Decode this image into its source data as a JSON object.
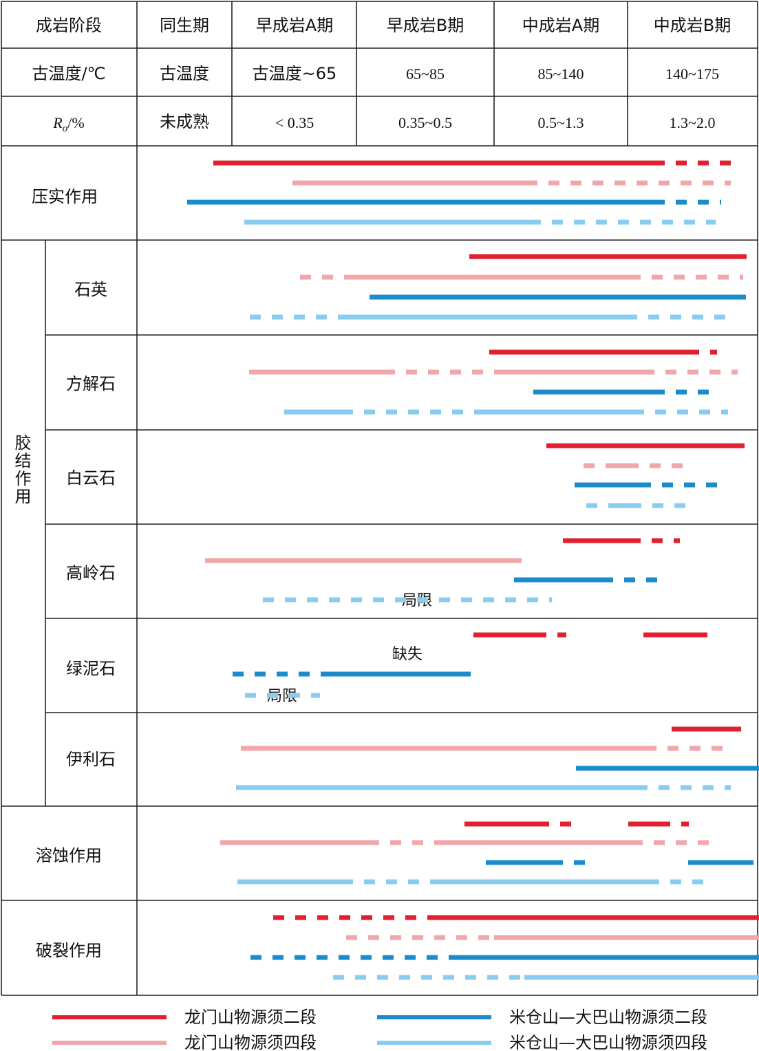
{
  "colors": {
    "longmen_2": "#e0202e",
    "longmen_4": "#f0a6aa",
    "micang_2": "#1a8ccc",
    "micang_4": "#88cdf0",
    "grid": "#222222"
  },
  "header": {
    "rows": [
      [
        "成岩阶段",
        "同生期",
        "早成岩A期",
        "早成岩B期",
        "中成岩A期",
        "中成岩B期"
      ],
      [
        "古温度/℃",
        "古温度",
        "古温度~65",
        "65~85",
        "85~140",
        "140~175"
      ],
      [
        "Ro/%",
        "未成熟",
        "< 0.35",
        "0.35~0.5",
        "0.5~1.3",
        "1.3~2.0"
      ]
    ]
  },
  "processes": {
    "compaction": "压实作用",
    "cementation": "胶结作用",
    "quartz": "石英",
    "calcite": "方解石",
    "dolomite": "白云石",
    "kaolinite": "高岭石",
    "chlorite": "绿泥石",
    "illite": "伊利石",
    "dissolution": "溶蚀作用",
    "fracturing": "破裂作用"
  },
  "annotations": {
    "kaolinite_note": "局限",
    "chlorite_missing": "缺失",
    "chlorite_note": "局限"
  },
  "legend": [
    {
      "label": "龙门山物源须二段",
      "color_key": "longmen_2"
    },
    {
      "label": "米仓山—大巴山物源须二段",
      "color_key": "micang_2"
    },
    {
      "label": "龙门山物源须四段",
      "color_key": "longmen_4"
    },
    {
      "label": "米仓山—大巴山物源须四段",
      "color_key": "micang_4"
    }
  ],
  "bars": {
    "compaction": [
      {
        "color_key": "longmen_2",
        "solid": [
          310,
          950
        ],
        "dashed": [
          950,
          1068
        ]
      },
      {
        "color_key": "longmen_4",
        "solid": [
          425,
          765
        ],
        "dashed": [
          765,
          1062
        ]
      },
      {
        "color_key": "micang_2",
        "solid": [
          272,
          950
        ],
        "dashed": [
          950,
          1048
        ]
      },
      {
        "color_key": "micang_4",
        "solid": [
          355,
          770
        ],
        "dashed": [
          770,
          1040
        ]
      }
    ],
    "quartz": [
      {
        "color_key": "longmen_2",
        "solid": [
          682,
          1085
        ],
        "dashed": null
      },
      {
        "color_key": "longmen_4",
        "solid": [
          515,
          915
        ],
        "dashed": [
          915,
          1080
        ],
        "dashed_before": [
          436,
          515
        ]
      },
      {
        "color_key": "micang_2",
        "solid": [
          537,
          1084
        ],
        "dashed": null
      },
      {
        "color_key": "micang_4",
        "solid": [
          500,
          910
        ],
        "dashed": [
          910,
          1055
        ],
        "dashed_before": [
          363,
          500
        ]
      }
    ],
    "calcite": [
      {
        "color_key": "longmen_2",
        "solid": [
          711,
          1000
        ],
        "dashed": [
          1000,
          1042
        ]
      },
      {
        "color_key": "longmen_4",
        "solid": [
          362,
          558
        ],
        "dashed": [
          558,
          720
        ],
        "solid2": [
          720,
          935
        ],
        "dashed2": [
          935,
          1072
        ]
      },
      {
        "color_key": "micang_2",
        "solid": [
          775,
          950
        ],
        "dashed": [
          950,
          1032
        ]
      },
      {
        "color_key": "micang_4",
        "solid": [
          413,
          497
        ],
        "dashed": [
          497,
          695
        ],
        "solid2": [
          695,
          920
        ],
        "dashed2": [
          920,
          1058
        ]
      }
    ],
    "dolomite": [
      {
        "color_key": "longmen_2",
        "solid": [
          794,
          1082
        ],
        "dashed": null
      },
      {
        "color_key": "longmen_4",
        "solid": [
          880,
          925
        ],
        "dashed": [
          848,
          995
        ]
      },
      {
        "color_key": "micang_2",
        "solid": [
          835,
          930
        ],
        "dashed": [
          930,
          1045
        ]
      },
      {
        "color_key": "micang_4",
        "solid": [
          885,
          925
        ],
        "dashed": [
          852,
          1008
        ]
      }
    ],
    "kaolinite": [
      {
        "color_key": "longmen_2",
        "solid": [
          818,
          915
        ],
        "dashed": [
          915,
          988
        ]
      },
      {
        "color_key": "longmen_4",
        "solid": [
          298,
          758
        ],
        "dashed": null
      },
      {
        "color_key": "micang_2",
        "solid": [
          747,
          875
        ],
        "dashed": [
          875,
          962
        ]
      },
      {
        "color_key": "micang_4",
        "solid": null,
        "dashed": [
          382,
          802
        ]
      }
    ],
    "chlorite": [
      {
        "color_key": "longmen_2",
        "solid": [
          688,
          778
        ],
        "dashed": [
          778,
          823
        ]
      },
      {
        "color_key": "longmen_2",
        "solid": [
          935,
          1015
        ],
        "dashed": [
          1015,
          1028
        ]
      },
      {
        "color_key": "micang_2",
        "solid": [
          480,
          684
        ],
        "dashed": [
          338,
          480
        ]
      },
      {
        "color_key": "micang_4",
        "solid": null,
        "dashed": [
          356,
          465
        ]
      }
    ],
    "illite": [
      {
        "color_key": "longmen_2",
        "solid": [
          976,
          1077
        ],
        "dashed": null
      },
      {
        "color_key": "longmen_4",
        "solid": [
          350,
          938
        ],
        "dashed": [
          938,
          1058
        ]
      },
      {
        "color_key": "micang_2",
        "solid": [
          837,
          1103
        ],
        "dashed": null
      },
      {
        "color_key": "micang_4",
        "solid": [
          343,
          925
        ],
        "dashed": [
          925,
          1062
        ]
      }
    ],
    "dissolution": [
      {
        "color_key": "longmen_2",
        "solid": [
          675,
          782
        ],
        "dashed": [
          782,
          835
        ]
      },
      {
        "color_key": "longmen_2",
        "solid": [
          913,
          958
        ],
        "dashed": [
          958,
          1001
        ]
      },
      {
        "color_key": "longmen_4",
        "solid": [
          320,
          535
        ],
        "dashed": [
          535,
          642
        ],
        "solid2": [
          642,
          918
        ],
        "dashed2": [
          918,
          1038
        ]
      },
      {
        "color_key": "micang_2",
        "solid": [
          706,
          802
        ],
        "dashed": [
          802,
          856
        ]
      },
      {
        "color_key": "micang_2",
        "solid": [
          1000,
          1095
        ],
        "dashed": null
      },
      {
        "color_key": "micang_4",
        "solid": [
          345,
          497
        ],
        "dashed": [
          497,
          628
        ],
        "solid2": [
          628,
          942
        ],
        "dashed2": [
          942,
          1032
        ]
      }
    ],
    "fracturing": [
      {
        "color_key": "longmen_2",
        "solid": [
          624,
          1103
        ],
        "dashed": [
          397,
          624
        ]
      },
      {
        "color_key": "longmen_4",
        "solid": [
          718,
          1103
        ],
        "dashed": [
          503,
          718
        ]
      },
      {
        "color_key": "micang_2",
        "solid": [
          656,
          1103
        ],
        "dashed": [
          364,
          656
        ]
      },
      {
        "color_key": "micang_4",
        "solid": [
          762,
          1103
        ],
        "dashed": [
          484,
          762
        ]
      }
    ]
  }
}
